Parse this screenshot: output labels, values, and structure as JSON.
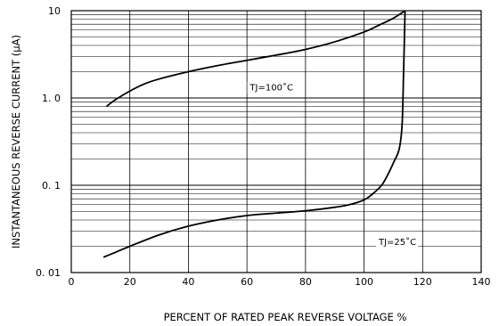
{
  "chart_data": {
    "type": "line",
    "xlabel": "PERCENT OF RATED PEAK REVERSE VOLTAGE %",
    "ylabel": "INSTANTANEOUS REVERSE CURRENT  (μA)",
    "xlim": [
      0,
      140
    ],
    "ylim": [
      0.01,
      10
    ],
    "yscale": "log",
    "grid": true,
    "x_ticks": [
      0,
      20,
      40,
      60,
      80,
      100,
      120,
      140
    ],
    "x_tick_labels": [
      "0",
      "20",
      "40",
      "60",
      "80",
      "100",
      "120",
      "140"
    ],
    "y_ticks": [
      0.01,
      0.1,
      1,
      10
    ],
    "y_tick_labels": [
      "0. 01",
      "0. 1",
      "1. 0",
      "10"
    ],
    "series": [
      {
        "label": "TJ=100˚C",
        "x": [
          12,
          15,
          20,
          25,
          30,
          40,
          50,
          60,
          70,
          80,
          90,
          100,
          105,
          110,
          114
        ],
        "y": [
          0.8,
          0.95,
          1.2,
          1.45,
          1.65,
          2.0,
          2.35,
          2.7,
          3.1,
          3.6,
          4.4,
          5.7,
          6.8,
          8.2,
          10
        ]
      },
      {
        "label": "TJ=25˚C",
        "x": [
          11,
          15,
          20,
          30,
          40,
          50,
          60,
          70,
          80,
          90,
          95,
          100,
          103,
          106,
          108,
          110,
          112,
          113,
          113.5,
          114
        ],
        "y": [
          0.015,
          0.017,
          0.02,
          0.027,
          0.034,
          0.04,
          0.045,
          0.048,
          0.051,
          0.056,
          0.06,
          0.068,
          0.08,
          0.1,
          0.13,
          0.18,
          0.26,
          0.5,
          2.0,
          10
        ]
      }
    ]
  }
}
